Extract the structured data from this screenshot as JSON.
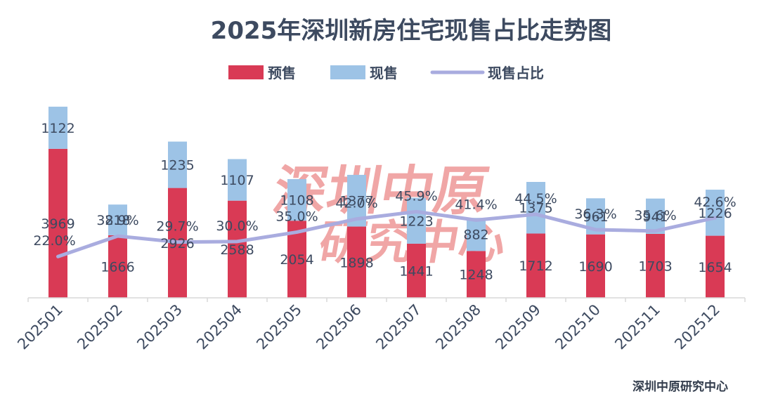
{
  "chart_data": {
    "type": "bar",
    "stacked": true,
    "title": "2025年深圳新房住宅现售占比走势图",
    "categories": [
      "202501",
      "202502",
      "202503",
      "202504",
      "202505",
      "202506",
      "202507",
      "202508",
      "202509",
      "202510",
      "202511",
      "202512"
    ],
    "series": [
      {
        "name": "预售",
        "kind": "bar",
        "color": "#d93a55",
        "values": [
          3969,
          1666,
          2926,
          2588,
          2054,
          1898,
          1441,
          1248,
          1712,
          1690,
          1703,
          1654
        ]
      },
      {
        "name": "现售",
        "kind": "bar",
        "color": "#9dc3e6",
        "values": [
          1122,
          818,
          1235,
          1107,
          1108,
          1377,
          1223,
          882,
          1375,
          961,
          941,
          1226
        ]
      },
      {
        "name": "现售占比",
        "kind": "line",
        "color": "#a9acdf",
        "values": [
          22.0,
          32.9,
          29.7,
          30.0,
          35.0,
          42.0,
          45.9,
          41.4,
          44.5,
          36.3,
          35.6,
          42.6
        ],
        "labels": [
          "22.0%",
          "32.9%",
          "29.7%",
          "30.0%",
          "35.0%",
          "42.0%",
          "45.9%",
          "41.4%",
          "44.5%",
          "36.3%",
          "35.6%",
          "42.6%"
        ]
      }
    ],
    "legend": [
      "预售",
      "现售",
      "现售占比"
    ],
    "legend_position": "top-center",
    "ylim": [
      0,
      5500
    ],
    "y2lim": [
      0,
      110
    ],
    "grid": false,
    "xlabel": "",
    "ylabel": ""
  },
  "watermark": {
    "line1": "深圳中原",
    "line2": "研究中心"
  },
  "source": "深圳中原研究中心"
}
